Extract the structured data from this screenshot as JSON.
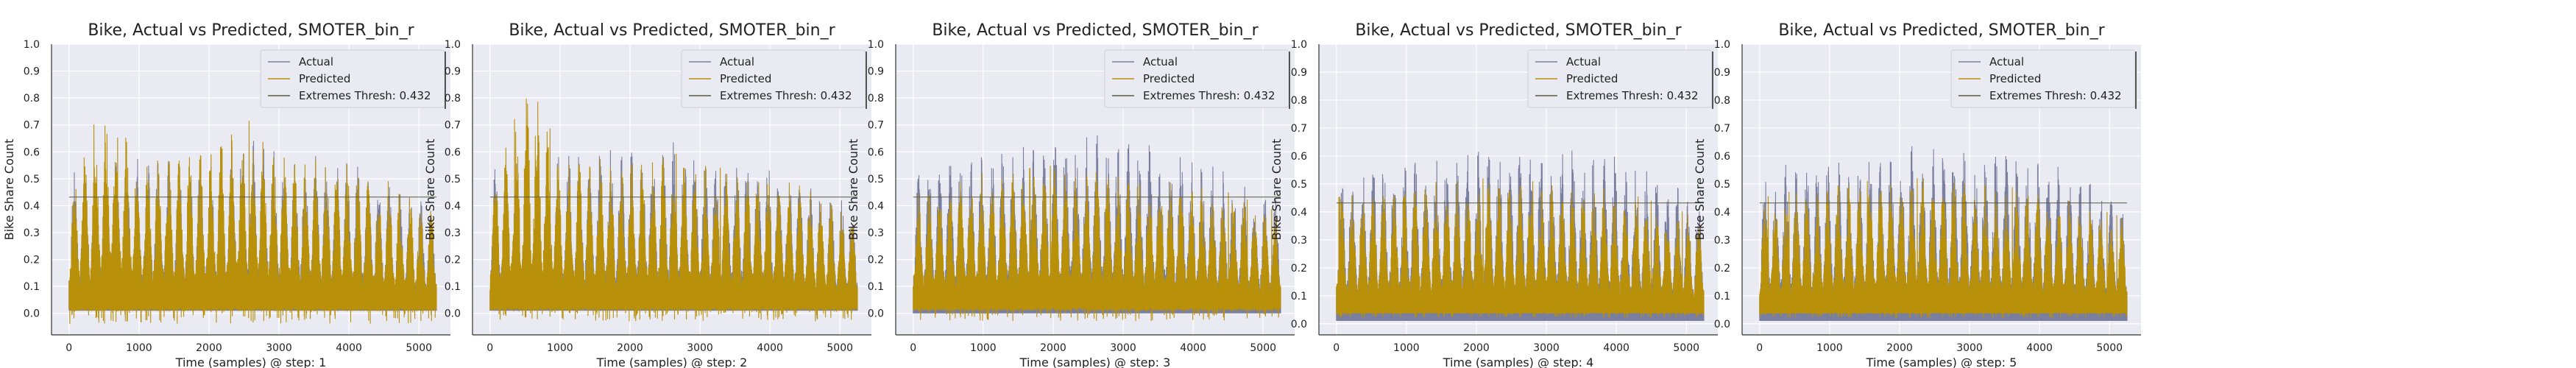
{
  "colors": {
    "actual": "#7a7fa0",
    "predicted": "#b8900a",
    "threshold": "#5a5a3a",
    "plot_bg": "#eaeaf2",
    "grid": "#ffffff"
  },
  "chart_data": [
    {
      "type": "line",
      "title": "Bike, Actual vs Predicted, SMOTER_bin_r",
      "xlabel": "Time (samples) @ step: 1",
      "ylabel": "Bike Share Count",
      "xlim": [
        -250,
        5450
      ],
      "ylim": [
        -0.08,
        1.0
      ],
      "xticks": [
        0,
        1000,
        2000,
        3000,
        4000,
        5000
      ],
      "xtick_labels": [
        "0",
        "1000",
        "2000",
        "3000",
        "4000",
        "5000"
      ],
      "yticks": [
        0.0,
        0.1,
        0.2,
        0.3,
        0.4,
        0.5,
        0.6,
        0.7,
        0.8,
        0.9,
        1.0
      ],
      "ytick_labels": [
        "0.0",
        "0.1",
        "0.2",
        "0.3",
        "0.4",
        "0.5",
        "0.6",
        "0.7",
        "0.8",
        "0.9",
        "1.0"
      ],
      "grid": true,
      "legend_position": "top-right",
      "x_range": [
        0,
        5250
      ],
      "series": [
        {
          "name": "Actual",
          "kind": "envelope",
          "baseline": 0.01,
          "peak_x": [
            0,
            1000,
            2000,
            2600,
            3000,
            4000,
            4500,
            5200
          ],
          "peak_y": [
            0.55,
            0.58,
            0.6,
            0.68,
            0.6,
            0.57,
            0.5,
            0.42
          ]
        },
        {
          "name": "Predicted",
          "kind": "envelope",
          "baseline": 0.02,
          "min_y": -0.04,
          "peak_x": [
            0,
            600,
            1000,
            2000,
            2600,
            3000,
            4000,
            4500,
            5200
          ],
          "peak_y": [
            0.5,
            0.84,
            0.6,
            0.62,
            0.72,
            0.6,
            0.56,
            0.5,
            0.4
          ]
        },
        {
          "name": "Extremes Thresh: 0.432",
          "kind": "hline",
          "y": 0.432
        }
      ]
    },
    {
      "type": "line",
      "title": "Bike, Actual vs Predicted, SMOTER_bin_r",
      "xlabel": "Time (samples) @ step: 2",
      "ylabel": "Bike Share Count",
      "xlim": [
        -250,
        5450
      ],
      "ylim": [
        -0.08,
        1.0
      ],
      "xticks": [
        0,
        1000,
        2000,
        3000,
        4000,
        5000
      ],
      "xtick_labels": [
        "0",
        "1000",
        "2000",
        "3000",
        "4000",
        "5000"
      ],
      "yticks": [
        0.0,
        0.1,
        0.2,
        0.3,
        0.4,
        0.5,
        0.6,
        0.7,
        0.8,
        0.9,
        1.0
      ],
      "ytick_labels": [
        "0.0",
        "0.1",
        "0.2",
        "0.3",
        "0.4",
        "0.5",
        "0.6",
        "0.7",
        "0.8",
        "0.9",
        "1.0"
      ],
      "grid": true,
      "legend_position": "top-right",
      "x_range": [
        0,
        5250
      ],
      "series": [
        {
          "name": "Actual",
          "kind": "envelope",
          "baseline": 0.01,
          "peak_x": [
            0,
            1000,
            2000,
            2600,
            3000,
            4000,
            4500,
            5200
          ],
          "peak_y": [
            0.55,
            0.6,
            0.63,
            0.66,
            0.6,
            0.58,
            0.5,
            0.42
          ]
        },
        {
          "name": "Predicted",
          "kind": "envelope",
          "baseline": 0.02,
          "min_y": -0.03,
          "peak_x": [
            0,
            600,
            1000,
            2000,
            2600,
            3000,
            4000,
            4500,
            5200
          ],
          "peak_y": [
            0.5,
            0.88,
            0.58,
            0.58,
            0.6,
            0.55,
            0.52,
            0.48,
            0.38
          ]
        },
        {
          "name": "Extremes Thresh: 0.432",
          "kind": "hline",
          "y": 0.432
        }
      ]
    },
    {
      "type": "line",
      "title": "Bike, Actual vs Predicted, SMOTER_bin_r",
      "xlabel": "Time (samples) @ step: 3",
      "ylabel": "Bike Share Count",
      "xlim": [
        -250,
        5450
      ],
      "ylim": [
        -0.08,
        1.0
      ],
      "xticks": [
        0,
        1000,
        2000,
        3000,
        4000,
        5000
      ],
      "xtick_labels": [
        "0",
        "1000",
        "2000",
        "3000",
        "4000",
        "5000"
      ],
      "yticks": [
        0.0,
        0.1,
        0.2,
        0.3,
        0.4,
        0.5,
        0.6,
        0.7,
        0.8,
        0.9,
        1.0
      ],
      "ytick_labels": [
        "0.0",
        "0.1",
        "0.2",
        "0.3",
        "0.4",
        "0.5",
        "0.6",
        "0.7",
        "0.8",
        "0.9",
        "1.0"
      ],
      "grid": true,
      "legend_position": "top-right",
      "x_range": [
        0,
        5250
      ],
      "series": [
        {
          "name": "Actual",
          "kind": "envelope",
          "baseline": 0.0,
          "peak_x": [
            0,
            1000,
            2000,
            2600,
            3000,
            4000,
            4500,
            5200
          ],
          "peak_y": [
            0.55,
            0.6,
            0.65,
            0.68,
            0.65,
            0.6,
            0.52,
            0.45
          ]
        },
        {
          "name": "Predicted",
          "kind": "envelope",
          "baseline": 0.02,
          "min_y": -0.03,
          "peak_x": [
            0,
            600,
            1000,
            2000,
            2600,
            3000,
            4000,
            4500,
            5200
          ],
          "peak_y": [
            0.45,
            0.5,
            0.52,
            0.55,
            0.55,
            0.52,
            0.5,
            0.45,
            0.38
          ]
        },
        {
          "name": "Extremes Thresh: 0.432",
          "kind": "hline",
          "y": 0.432
        }
      ]
    },
    {
      "type": "line",
      "title": "Bike, Actual vs Predicted, SMOTER_bin_r",
      "xlabel": "Time (samples) @ step: 4",
      "ylabel": "Bike Share Count",
      "xlim": [
        -250,
        5450
      ],
      "ylim": [
        -0.04,
        1.0
      ],
      "xticks": [
        0,
        1000,
        2000,
        3000,
        4000,
        5000
      ],
      "xtick_labels": [
        "0",
        "1000",
        "2000",
        "3000",
        "4000",
        "5000"
      ],
      "yticks": [
        0.0,
        0.1,
        0.2,
        0.3,
        0.4,
        0.5,
        0.6,
        0.7,
        0.8,
        0.9,
        1.0
      ],
      "ytick_labels": [
        "0.0",
        "0.1",
        "0.2",
        "0.3",
        "0.4",
        "0.5",
        "0.6",
        "0.7",
        "0.8",
        "0.9",
        "1.0"
      ],
      "grid": true,
      "legend_position": "top-right",
      "x_range": [
        0,
        5250
      ],
      "series": [
        {
          "name": "Actual",
          "kind": "envelope",
          "baseline": 0.01,
          "peak_x": [
            0,
            1000,
            2000,
            2600,
            3000,
            4000,
            4500,
            5200
          ],
          "peak_y": [
            0.55,
            0.6,
            0.63,
            0.67,
            0.65,
            0.62,
            0.55,
            0.45
          ]
        },
        {
          "name": "Predicted",
          "kind": "envelope",
          "baseline": 0.04,
          "min_y": 0.02,
          "peak_x": [
            0,
            600,
            1000,
            2000,
            2600,
            3000,
            4000,
            4500,
            5200
          ],
          "peak_y": [
            0.45,
            0.5,
            0.5,
            0.52,
            0.52,
            0.5,
            0.48,
            0.44,
            0.38
          ]
        },
        {
          "name": "Extremes Thresh: 0.432",
          "kind": "hline",
          "y": 0.432
        }
      ]
    },
    {
      "type": "line",
      "title": "Bike, Actual vs Predicted, SMOTER_bin_r",
      "xlabel": "Time (samples) @ step: 5",
      "ylabel": "Bike Share Count",
      "xlim": [
        -250,
        5450
      ],
      "ylim": [
        -0.04,
        1.0
      ],
      "xticks": [
        0,
        1000,
        2000,
        3000,
        4000,
        5000
      ],
      "xtick_labels": [
        "0",
        "1000",
        "2000",
        "3000",
        "4000",
        "5000"
      ],
      "yticks": [
        0.0,
        0.1,
        0.2,
        0.3,
        0.4,
        0.5,
        0.6,
        0.7,
        0.8,
        0.9,
        1.0
      ],
      "ytick_labels": [
        "0.0",
        "0.1",
        "0.2",
        "0.3",
        "0.4",
        "0.5",
        "0.6",
        "0.7",
        "0.8",
        "0.9",
        "1.0"
      ],
      "grid": true,
      "legend_position": "top-right",
      "x_range": [
        0,
        5250
      ],
      "series": [
        {
          "name": "Actual",
          "kind": "envelope",
          "baseline": 0.01,
          "peak_x": [
            0,
            1000,
            2000,
            2600,
            3000,
            4000,
            4500,
            5200
          ],
          "peak_y": [
            0.55,
            0.6,
            0.63,
            0.68,
            0.65,
            0.62,
            0.55,
            0.45
          ]
        },
        {
          "name": "Predicted",
          "kind": "envelope",
          "baseline": 0.04,
          "min_y": 0.02,
          "peak_x": [
            0,
            600,
            1000,
            2000,
            2600,
            3000,
            4000,
            4500,
            5200
          ],
          "peak_y": [
            0.45,
            0.48,
            0.5,
            0.52,
            0.52,
            0.5,
            0.48,
            0.44,
            0.38
          ]
        },
        {
          "name": "Extremes Thresh: 0.432",
          "kind": "hline",
          "y": 0.432
        }
      ]
    }
  ]
}
